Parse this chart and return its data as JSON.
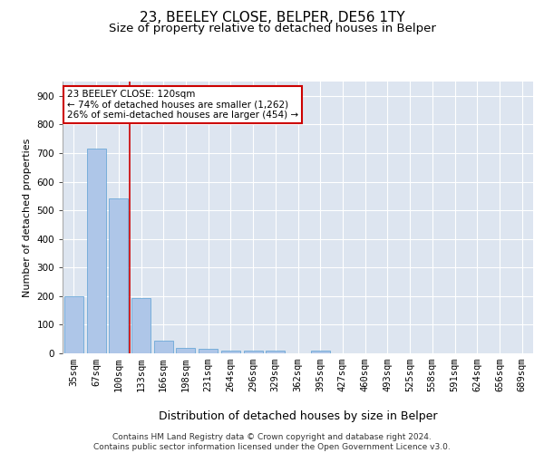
{
  "title": "23, BEELEY CLOSE, BELPER, DE56 1TY",
  "subtitle": "Size of property relative to detached houses in Belper",
  "xlabel": "Distribution of detached houses by size in Belper",
  "ylabel": "Number of detached properties",
  "categories": [
    "35sqm",
    "67sqm",
    "100sqm",
    "133sqm",
    "166sqm",
    "198sqm",
    "231sqm",
    "264sqm",
    "296sqm",
    "329sqm",
    "362sqm",
    "395sqm",
    "427sqm",
    "460sqm",
    "493sqm",
    "525sqm",
    "558sqm",
    "591sqm",
    "624sqm",
    "656sqm",
    "689sqm"
  ],
  "values": [
    200,
    715,
    540,
    193,
    45,
    18,
    15,
    10,
    10,
    10,
    0,
    10,
    0,
    0,
    0,
    0,
    0,
    0,
    0,
    0,
    0
  ],
  "bar_color": "#aec6e8",
  "bar_edgecolor": "#5a9fd4",
  "background_color": "#dde5f0",
  "grid_color": "#ffffff",
  "fig_background": "#ffffff",
  "vline_x": 2.5,
  "vline_color": "#cc0000",
  "annotation_text": "23 BEELEY CLOSE: 120sqm\n← 74% of detached houses are smaller (1,262)\n26% of semi-detached houses are larger (454) →",
  "annotation_box_facecolor": "#ffffff",
  "annotation_box_edgecolor": "#cc0000",
  "footer_text": "Contains HM Land Registry data © Crown copyright and database right 2024.\nContains public sector information licensed under the Open Government Licence v3.0.",
  "ylim": [
    0,
    950
  ],
  "yticks": [
    0,
    100,
    200,
    300,
    400,
    500,
    600,
    700,
    800,
    900
  ],
  "title_fontsize": 11,
  "subtitle_fontsize": 9.5,
  "ylabel_fontsize": 8,
  "xlabel_fontsize": 9,
  "tick_fontsize": 7.5,
  "annotation_fontsize": 7.5,
  "footer_fontsize": 6.5
}
